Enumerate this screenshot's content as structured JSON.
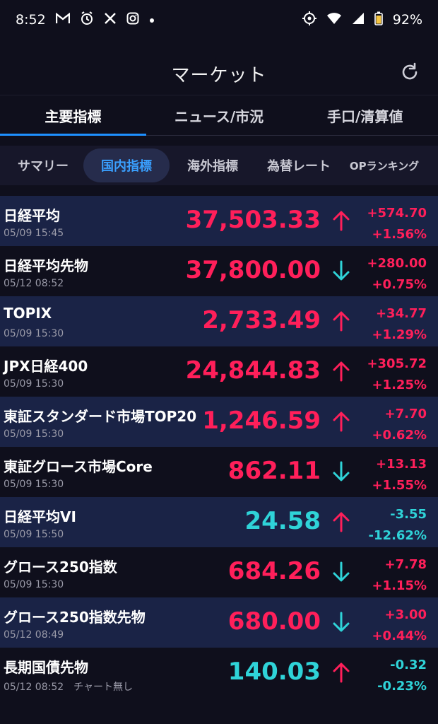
{
  "status_bar": {
    "time": "8:52",
    "battery": "92%"
  },
  "header": {
    "title": "マーケット"
  },
  "main_tabs": [
    {
      "label": "主要指標",
      "active": true
    },
    {
      "label": "ニュース/市況",
      "active": false
    },
    {
      "label": "手口/清算値",
      "active": false
    }
  ],
  "sub_tabs": [
    {
      "label": "サマリー",
      "active": false
    },
    {
      "label": "国内指標",
      "active": true
    },
    {
      "label": "海外指標",
      "active": false
    },
    {
      "label": "為替レート",
      "active": false
    },
    {
      "label": "OPランキング",
      "active": false
    }
  ],
  "colors": {
    "up": "#ff1f5a",
    "down": "#2fd3d8",
    "accent": "#1e90ff"
  },
  "markets": [
    {
      "name": "日経平均",
      "datetime": "05/09 15:45",
      "note": "",
      "price": "37,503.33",
      "price_color": "red",
      "arrow": "up",
      "change": "+574.70",
      "change_pct": "+1.56%",
      "change_color": "red"
    },
    {
      "name": "日経平均先物",
      "datetime": "05/12 08:52",
      "note": "",
      "price": "37,800.00",
      "price_color": "red",
      "arrow": "down",
      "change": "+280.00",
      "change_pct": "+0.75%",
      "change_color": "red"
    },
    {
      "name": "TOPIX",
      "datetime": "05/09 15:30",
      "note": "",
      "price": "2,733.49",
      "price_color": "red",
      "arrow": "up",
      "change": "+34.77",
      "change_pct": "+1.29%",
      "change_color": "red"
    },
    {
      "name": "JPX日経400",
      "datetime": "05/09 15:30",
      "note": "",
      "price": "24,844.83",
      "price_color": "red",
      "arrow": "up",
      "change": "+305.72",
      "change_pct": "+1.25%",
      "change_color": "red"
    },
    {
      "name": "東証スタンダード市場TOP20",
      "datetime": "05/09 15:30",
      "note": "",
      "price": "1,246.59",
      "price_color": "red",
      "arrow": "up",
      "change": "+7.70",
      "change_pct": "+0.62%",
      "change_color": "red"
    },
    {
      "name": "東証グロース市場Core",
      "datetime": "05/09 15:30",
      "note": "",
      "price": "862.11",
      "price_color": "red",
      "arrow": "down",
      "change": "+13.13",
      "change_pct": "+1.55%",
      "change_color": "red"
    },
    {
      "name": "日経平均VI",
      "datetime": "05/09 15:50",
      "note": "",
      "price": "24.58",
      "price_color": "cyan",
      "arrow": "up",
      "change": "-3.55",
      "change_pct": "-12.62%",
      "change_color": "cyan"
    },
    {
      "name": "グロース250指数",
      "datetime": "05/09 15:30",
      "note": "",
      "price": "684.26",
      "price_color": "red",
      "arrow": "down",
      "change": "+7.78",
      "change_pct": "+1.15%",
      "change_color": "red"
    },
    {
      "name": "グロース250指数先物",
      "datetime": "05/12 08:49",
      "note": "",
      "price": "680.00",
      "price_color": "red",
      "arrow": "down",
      "change": "+3.00",
      "change_pct": "+0.44%",
      "change_color": "red"
    },
    {
      "name": "長期国債先物",
      "datetime": "05/12 08:52",
      "note": "チャート無し",
      "price": "140.03",
      "price_color": "cyan",
      "arrow": "up",
      "change": "-0.32",
      "change_pct": "-0.23%",
      "change_color": "cyan"
    }
  ]
}
